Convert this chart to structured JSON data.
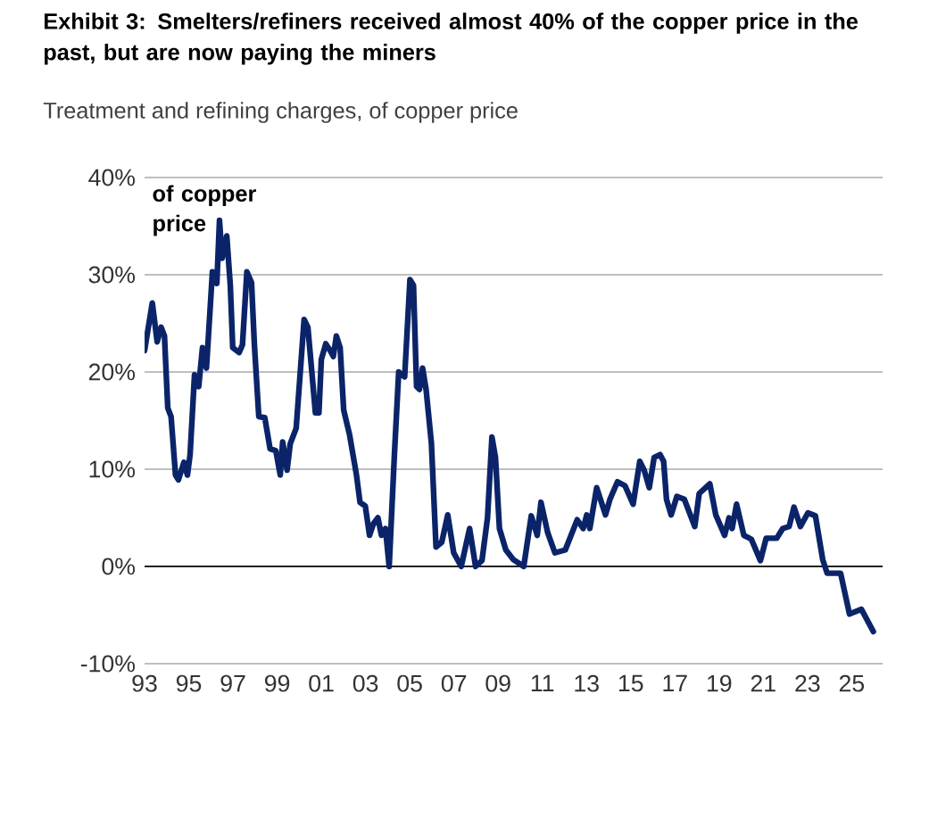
{
  "chart_data": {
    "type": "line",
    "title": "Exhibit 3: Smelters/refiners received almost 40% of the copper price in the past, but are now paying the miners",
    "subtitle": "Treatment and refining charges, of copper price",
    "ylabel": "of copper price",
    "xlim": [
      1993,
      2026.4
    ],
    "ylim": [
      -10,
      40
    ],
    "xticks": [
      {
        "value": 1993,
        "label": "93"
      },
      {
        "value": 1995,
        "label": "95"
      },
      {
        "value": 1997,
        "label": "97"
      },
      {
        "value": 1999,
        "label": "99"
      },
      {
        "value": 2001,
        "label": "01"
      },
      {
        "value": 2003,
        "label": "03"
      },
      {
        "value": 2005,
        "label": "05"
      },
      {
        "value": 2007,
        "label": "07"
      },
      {
        "value": 2009,
        "label": "09"
      },
      {
        "value": 2011,
        "label": "11"
      },
      {
        "value": 2013,
        "label": "13"
      },
      {
        "value": 2015,
        "label": "15"
      },
      {
        "value": 2017,
        "label": "17"
      },
      {
        "value": 2019,
        "label": "19"
      },
      {
        "value": 2021,
        "label": "21"
      },
      {
        "value": 2023,
        "label": "23"
      },
      {
        "value": 2025,
        "label": "25"
      }
    ],
    "yticks": [
      {
        "value": -10,
        "label": "-10%"
      },
      {
        "value": 0,
        "label": "0%"
      },
      {
        "value": 10,
        "label": "10%"
      },
      {
        "value": 20,
        "label": "20%"
      },
      {
        "value": 30,
        "label": "30%"
      },
      {
        "value": 40,
        "label": "40%"
      }
    ],
    "grid": "y",
    "ref_lines": [
      {
        "axis": "y",
        "value": 0,
        "color": "#222222"
      }
    ],
    "series": [
      {
        "color": "#0b2469",
        "x": [
          1993.0,
          1993.35,
          1993.57,
          1993.75,
          1993.9,
          1994.05,
          1994.2,
          1994.4,
          1994.53,
          1994.78,
          1994.94,
          1995.06,
          1995.26,
          1995.45,
          1995.62,
          1995.8,
          1996.07,
          1996.27,
          1996.39,
          1996.51,
          1996.72,
          1996.88,
          1996.99,
          1997.28,
          1997.43,
          1997.63,
          1997.84,
          1997.97,
          1998.17,
          1998.44,
          1998.68,
          1998.94,
          1999.14,
          1999.25,
          1999.45,
          1999.59,
          1999.86,
          2000.22,
          2000.39,
          2000.57,
          2000.73,
          2000.89,
          2001.0,
          2001.2,
          2001.4,
          2001.54,
          2001.68,
          2001.85,
          2002.01,
          2002.28,
          2002.59,
          2002.75,
          2002.99,
          2003.18,
          2003.36,
          2003.56,
          2003.72,
          2003.9,
          2004.07,
          2004.3,
          2004.5,
          2004.77,
          2005.01,
          2005.17,
          2005.31,
          2005.44,
          2005.58,
          2005.74,
          2005.98,
          2006.19,
          2006.45,
          2006.72,
          2006.99,
          2007.33,
          2007.71,
          2007.98,
          2008.27,
          2008.52,
          2008.72,
          2008.88,
          2009.06,
          2009.35,
          2009.69,
          2010.16,
          2010.5,
          2010.77,
          2010.94,
          2011.24,
          2011.57,
          2012.04,
          2012.58,
          2012.85,
          2013.01,
          2013.15,
          2013.46,
          2013.86,
          2014.06,
          2014.4,
          2014.74,
          2015.11,
          2015.41,
          2015.61,
          2015.84,
          2016.06,
          2016.33,
          2016.49,
          2016.62,
          2016.83,
          2017.09,
          2017.43,
          2017.9,
          2018.1,
          2018.58,
          2018.85,
          2019.25,
          2019.45,
          2019.59,
          2019.79,
          2020.12,
          2020.46,
          2020.87,
          2021.13,
          2021.61,
          2021.88,
          2022.17,
          2022.39,
          2022.68,
          2023.02,
          2023.36,
          2023.69,
          2023.89,
          2024.5,
          2024.9,
          2025.44,
          2025.98
        ],
        "values": [
          22.2,
          27.1,
          23.1,
          24.6,
          23.7,
          16.3,
          15.4,
          9.4,
          8.9,
          10.7,
          9.4,
          11.5,
          19.7,
          18.5,
          22.5,
          20.4,
          30.3,
          29.1,
          35.6,
          31.7,
          34.0,
          28.9,
          22.5,
          22.0,
          22.8,
          30.3,
          29.2,
          22.8,
          15.4,
          15.3,
          12.1,
          11.9,
          9.4,
          12.8,
          9.9,
          12.6,
          14.2,
          25.4,
          24.6,
          20.0,
          15.8,
          15.8,
          21.3,
          22.9,
          22.2,
          21.6,
          23.7,
          22.5,
          16.1,
          13.5,
          9.4,
          6.6,
          6.2,
          3.2,
          4.4,
          5.0,
          3.2,
          3.9,
          0.0,
          11.2,
          20.0,
          19.5,
          29.5,
          28.9,
          18.5,
          18.2,
          20.4,
          18.2,
          12.7,
          2.0,
          2.5,
          5.3,
          1.4,
          0.0,
          3.9,
          0.0,
          0.6,
          5.0,
          13.3,
          11.2,
          3.9,
          1.7,
          0.7,
          0.0,
          5.2,
          3.2,
          6.6,
          3.5,
          1.4,
          1.7,
          4.8,
          3.9,
          5.3,
          3.9,
          8.1,
          5.3,
          6.9,
          8.7,
          8.3,
          6.4,
          10.8,
          9.9,
          8.1,
          11.2,
          11.5,
          10.8,
          6.9,
          5.3,
          7.2,
          6.9,
          4.1,
          7.5,
          8.5,
          5.3,
          3.2,
          5.0,
          3.9,
          6.4,
          3.2,
          2.8,
          0.6,
          2.9,
          2.9,
          3.9,
          4.1,
          6.1,
          4.1,
          5.5,
          5.2,
          0.7,
          -0.7,
          -0.7,
          -4.9,
          -4.4,
          -6.7
        ]
      }
    ]
  }
}
